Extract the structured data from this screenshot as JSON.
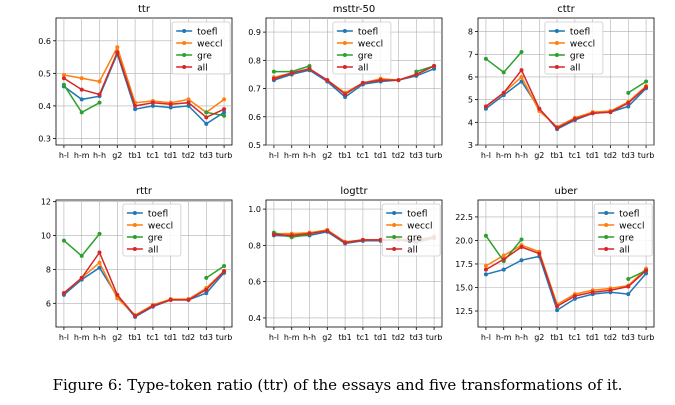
{
  "caption": "Figure 6: Type-token ratio (ttr) of the essays and five transformations of it.",
  "colors": {
    "toefl": "#1f77b4",
    "weccl": "#ff7f0e",
    "gre": "#2ca02c",
    "all": "#d62728"
  },
  "chart_data": [
    {
      "type": "line",
      "title": "ttr",
      "categories": [
        "h-l",
        "h-m",
        "h-h",
        "g2",
        "tb1",
        "tc1",
        "td1",
        "td2",
        "td3",
        "turb"
      ],
      "ylim": [
        0.28,
        0.67
      ],
      "yticks": [
        "0.3",
        "0.4",
        "0.5",
        "0.6"
      ],
      "ytick_values": [
        0.3,
        0.4,
        0.5,
        0.6
      ],
      "grid": true,
      "legend": "top-right",
      "series": [
        {
          "name": "toefl",
          "values": [
            0.46,
            0.42,
            0.43,
            0.56,
            0.39,
            0.4,
            0.395,
            0.4,
            0.345,
            0.38
          ]
        },
        {
          "name": "weccl",
          "values": [
            0.495,
            0.485,
            0.475,
            0.58,
            0.41,
            0.415,
            0.41,
            0.42,
            0.38,
            0.42
          ]
        },
        {
          "name": "gre",
          "values": [
            0.465,
            0.38,
            0.41,
            null,
            null,
            null,
            null,
            null,
            0.38,
            0.37
          ]
        },
        {
          "name": "all",
          "values": [
            0.485,
            0.45,
            0.435,
            0.565,
            0.4,
            0.41,
            0.405,
            0.41,
            0.365,
            0.39
          ]
        }
      ]
    },
    {
      "type": "line",
      "title": "msttr-50",
      "categories": [
        "h-l",
        "h-m",
        "h-h",
        "g2",
        "tb1",
        "tc1",
        "td1",
        "td2",
        "td3",
        "turb"
      ],
      "ylim": [
        0.5,
        0.95
      ],
      "yticks": [
        "0.5",
        "0.6",
        "0.7",
        "0.8",
        "0.9"
      ],
      "ytick_values": [
        0.5,
        0.6,
        0.7,
        0.8,
        0.9
      ],
      "grid": true,
      "legend": "top-center",
      "series": [
        {
          "name": "toefl",
          "values": [
            0.73,
            0.75,
            0.765,
            0.725,
            0.67,
            0.715,
            0.725,
            0.73,
            0.745,
            0.77
          ]
        },
        {
          "name": "weccl",
          "values": [
            0.74,
            0.755,
            0.77,
            0.73,
            0.685,
            0.72,
            0.735,
            0.73,
            0.75,
            0.78
          ]
        },
        {
          "name": "gre",
          "values": [
            0.76,
            0.76,
            0.78,
            null,
            null,
            null,
            null,
            null,
            0.76,
            0.78
          ]
        },
        {
          "name": "all",
          "values": [
            0.735,
            0.755,
            0.77,
            0.73,
            0.68,
            0.72,
            0.73,
            0.73,
            0.75,
            0.78
          ]
        }
      ]
    },
    {
      "type": "line",
      "title": "cttr",
      "categories": [
        "h-l",
        "h-m",
        "h-h",
        "g2",
        "tb1",
        "tc1",
        "td1",
        "td2",
        "td3",
        "turb"
      ],
      "ylim": [
        3,
        8.6
      ],
      "yticks": [
        "3",
        "4",
        "5",
        "6",
        "7",
        "8"
      ],
      "ytick_values": [
        3,
        4,
        5,
        6,
        7,
        8
      ],
      "grid": true,
      "legend": "top-center",
      "series": [
        {
          "name": "toefl",
          "values": [
            4.6,
            5.2,
            5.8,
            4.6,
            3.7,
            4.1,
            4.4,
            4.45,
            4.7,
            5.5
          ]
        },
        {
          "name": "weccl",
          "values": [
            4.7,
            5.3,
            6.0,
            4.5,
            3.8,
            4.2,
            4.45,
            4.5,
            4.9,
            5.6
          ]
        },
        {
          "name": "gre",
          "values": [
            6.8,
            6.2,
            7.1,
            null,
            null,
            null,
            null,
            null,
            5.3,
            5.8
          ]
        },
        {
          "name": "all",
          "values": [
            4.7,
            5.3,
            6.3,
            4.6,
            3.75,
            4.15,
            4.4,
            4.45,
            4.85,
            5.55
          ]
        }
      ]
    },
    {
      "type": "line",
      "title": "rttr",
      "categories": [
        "h-l",
        "h-m",
        "h-h",
        "g2",
        "tb1",
        "tc1",
        "td1",
        "td2",
        "td3",
        "turb"
      ],
      "ylim": [
        4.6,
        12.1
      ],
      "yticks": [
        "6",
        "8",
        "10",
        "12"
      ],
      "ytick_values": [
        6,
        8,
        10,
        12
      ],
      "grid": true,
      "legend": "top-center",
      "series": [
        {
          "name": "toefl",
          "values": [
            6.5,
            7.4,
            8.1,
            6.4,
            5.2,
            5.8,
            6.2,
            6.2,
            6.6,
            7.8
          ]
        },
        {
          "name": "weccl",
          "values": [
            6.6,
            7.5,
            8.4,
            6.3,
            5.3,
            5.9,
            6.25,
            6.25,
            6.9,
            7.9
          ]
        },
        {
          "name": "gre",
          "values": [
            9.7,
            8.8,
            10.1,
            null,
            null,
            null,
            null,
            null,
            7.5,
            8.2
          ]
        },
        {
          "name": "all",
          "values": [
            6.6,
            7.5,
            9.0,
            6.5,
            5.25,
            5.85,
            6.2,
            6.2,
            6.8,
            7.9
          ]
        }
      ]
    },
    {
      "type": "line",
      "title": "logttr",
      "categories": [
        "h-l",
        "h-m",
        "h-h",
        "g2",
        "tb1",
        "tc1",
        "td1",
        "td2",
        "td3",
        "turb"
      ],
      "ylim": [
        0.35,
        1.05
      ],
      "yticks": [
        "0.4",
        "0.6",
        "0.8",
        "1.0"
      ],
      "ytick_values": [
        0.4,
        0.6,
        0.8,
        1.0
      ],
      "grid": true,
      "legend": "top-right",
      "series": [
        {
          "name": "toefl",
          "values": [
            0.855,
            0.85,
            0.855,
            0.875,
            0.81,
            0.825,
            0.825,
            0.83,
            0.815,
            0.84
          ]
        },
        {
          "name": "weccl",
          "values": [
            0.865,
            0.865,
            0.87,
            0.885,
            0.82,
            0.83,
            0.83,
            0.835,
            0.83,
            0.85
          ]
        },
        {
          "name": "gre",
          "values": [
            0.87,
            0.845,
            0.86,
            null,
            null,
            null,
            null,
            null,
            0.83,
            0.84
          ]
        },
        {
          "name": "all",
          "values": [
            0.86,
            0.855,
            0.865,
            0.88,
            0.815,
            0.83,
            0.83,
            0.83,
            0.825,
            0.845
          ]
        }
      ]
    },
    {
      "type": "line",
      "title": "uber",
      "categories": [
        "h-l",
        "h-m",
        "h-h",
        "g2",
        "tb1",
        "tc1",
        "td1",
        "td2",
        "td3",
        "turb"
      ],
      "ylim": [
        10.8,
        24.3
      ],
      "yticks": [
        "12.5",
        "15.0",
        "17.5",
        "20.0",
        "22.5"
      ],
      "ytick_values": [
        12.5,
        15.0,
        17.5,
        20.0,
        22.5
      ],
      "grid": true,
      "legend": "top-right",
      "series": [
        {
          "name": "toefl",
          "values": [
            16.4,
            16.9,
            17.9,
            18.3,
            12.6,
            13.8,
            14.3,
            14.5,
            14.3,
            16.5
          ]
        },
        {
          "name": "weccl",
          "values": [
            17.3,
            18.4,
            19.5,
            18.8,
            13.2,
            14.3,
            14.7,
            14.9,
            15.2,
            17.0
          ]
        },
        {
          "name": "gre",
          "values": [
            20.5,
            17.8,
            20.1,
            null,
            null,
            null,
            null,
            null,
            15.9,
            16.8
          ]
        },
        {
          "name": "all",
          "values": [
            16.9,
            18.0,
            19.3,
            18.6,
            13.0,
            14.1,
            14.5,
            14.7,
            15.1,
            16.8
          ]
        }
      ]
    }
  ]
}
